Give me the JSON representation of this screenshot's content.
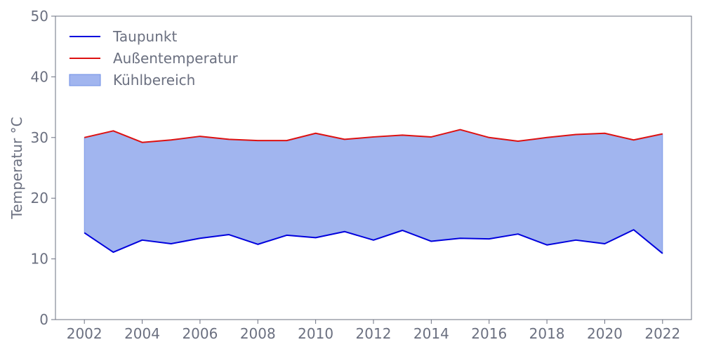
{
  "chart_data": {
    "type": "area",
    "x": [
      2002,
      2003,
      2004,
      2005,
      2006,
      2007,
      2008,
      2009,
      2010,
      2011,
      2012,
      2013,
      2014,
      2015,
      2016,
      2017,
      2018,
      2019,
      2020,
      2021,
      2022
    ],
    "series": [
      {
        "name": "Taupunkt",
        "type": "line",
        "color": "#0000dd",
        "values": [
          14.3,
          11.1,
          13.1,
          12.5,
          13.4,
          14.0,
          12.4,
          13.9,
          13.5,
          14.5,
          13.1,
          14.7,
          12.9,
          13.4,
          13.3,
          14.1,
          12.3,
          13.1,
          12.5,
          14.8,
          10.9
        ]
      },
      {
        "name": "Außentemperatur",
        "type": "line",
        "color": "#dd1111",
        "values": [
          30.0,
          31.1,
          29.2,
          29.6,
          30.2,
          29.7,
          29.5,
          29.5,
          30.7,
          29.7,
          30.1,
          30.4,
          30.1,
          31.3,
          30.0,
          29.4,
          30.0,
          30.5,
          30.7,
          29.6,
          30.6
        ]
      }
    ],
    "fill": {
      "name": "Kühlbereich",
      "between": [
        "Taupunkt",
        "Außentemperatur"
      ],
      "color": "#6e8ee6",
      "opacity": 0.65
    },
    "ylabel": "Temperatur °C",
    "xlabel": "",
    "xlim": [
      2001,
      2023
    ],
    "ylim": [
      0,
      50
    ],
    "xticks": [
      2002,
      2004,
      2006,
      2008,
      2010,
      2012,
      2014,
      2016,
      2018,
      2020,
      2022
    ],
    "yticks": [
      0,
      10,
      20,
      30,
      40,
      50
    ],
    "legend": [
      "Taupunkt",
      "Außentemperatur",
      "Kühlbereich"
    ],
    "legend_position": "top-left",
    "grid": false,
    "text_color": "#6b7080",
    "axis_color": "#6b7080"
  }
}
